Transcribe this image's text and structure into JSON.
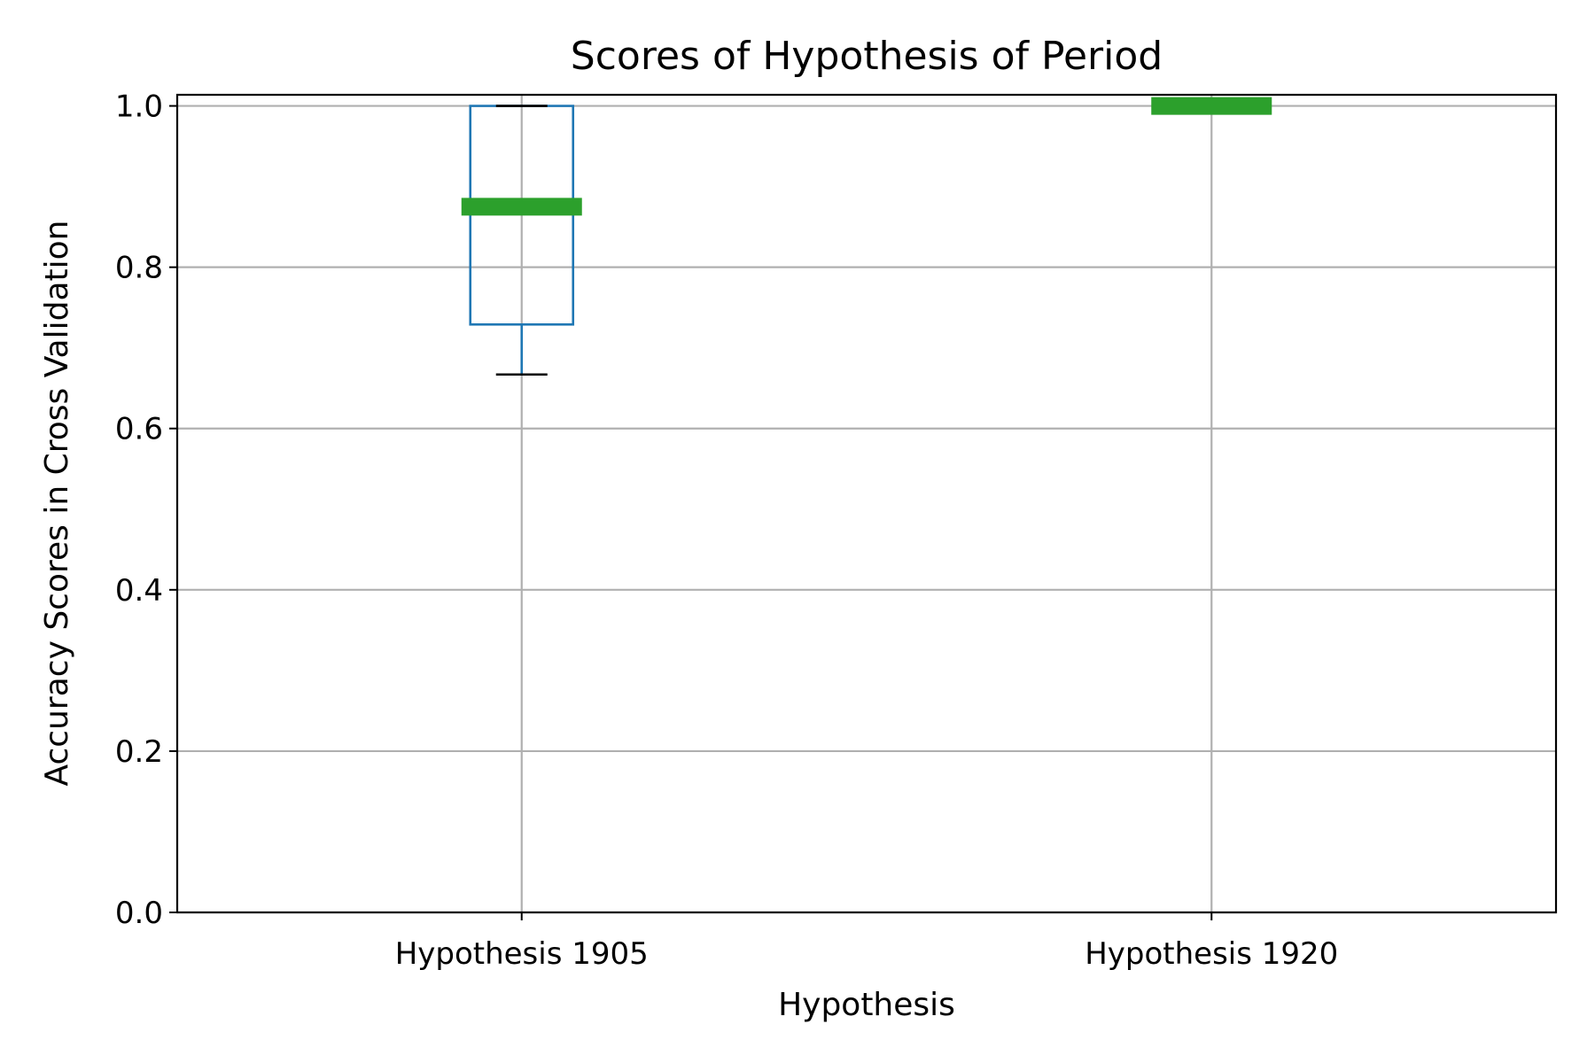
{
  "chart_data": {
    "type": "box",
    "title": "Scores of Hypothesis of Period",
    "xlabel": "Hypothesis",
    "ylabel": "Accuracy Scores in Cross Validation",
    "ylim": [
      0.0,
      1.0
    ],
    "yticks": [
      "0.0",
      "0.2",
      "0.4",
      "0.6",
      "0.8",
      "1.0"
    ],
    "grid": true,
    "categories": [
      "Hypothesis 1905",
      "Hypothesis 1920"
    ],
    "boxes": [
      {
        "category": "Hypothesis 1905",
        "whisker_low": 0.667,
        "q1": 0.729,
        "median": 0.875,
        "q3": 1.0,
        "whisker_high": 1.0
      },
      {
        "category": "Hypothesis 1920",
        "whisker_low": 1.0,
        "q1": 1.0,
        "median": 1.0,
        "q3": 1.0,
        "whisker_high": 1.0
      }
    ],
    "colors": {
      "box": "#1f77b4",
      "median": "#2ca02c",
      "cap": "#000000",
      "grid": "#b0b0b0"
    }
  }
}
